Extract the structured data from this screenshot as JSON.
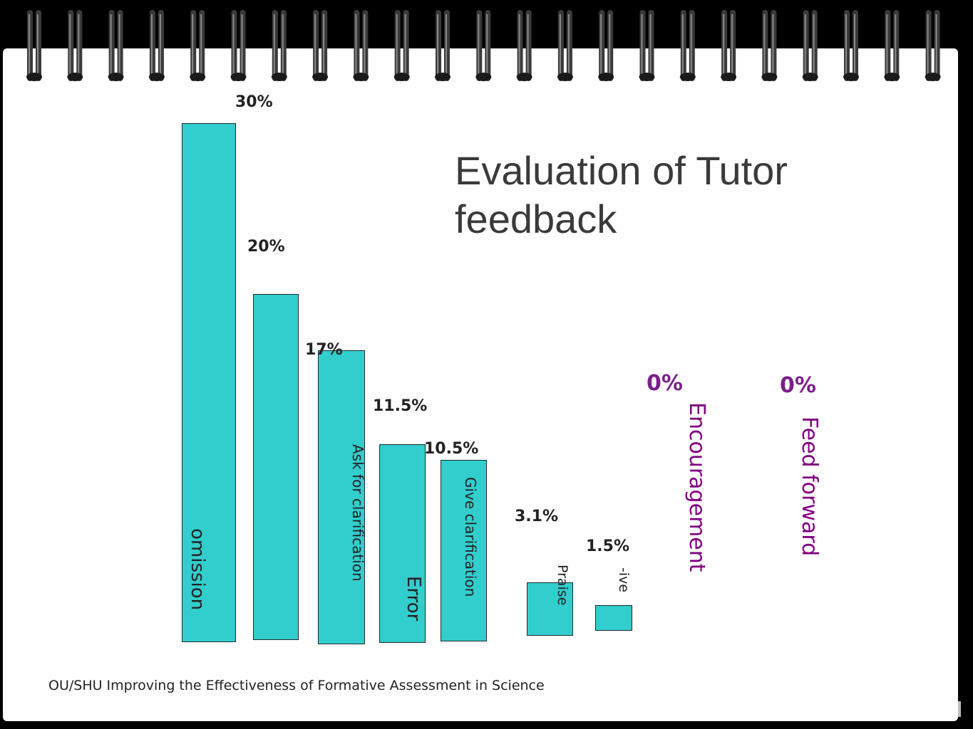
{
  "slide": {
    "title_line1": "Evaluation of Tutor",
    "title_line2": "feedback",
    "footer": "OU/SHU Improving the Effectiveness of Formative Assessment in Science"
  },
  "colors": {
    "bar": "#32cdcd",
    "purple": "#800080",
    "value_purple": "#7b1f8a"
  },
  "chart_data": {
    "type": "bar",
    "title": "Evaluation of Tutor feedback",
    "categories": [
      "omission",
      "",
      "Ask for clarification",
      "Error",
      "Give clarification",
      "Praise",
      "-ive",
      "Encouragement",
      "Feed forward"
    ],
    "values": [
      30,
      20,
      17,
      11.5,
      10.5,
      3.1,
      1.5,
      0,
      0
    ],
    "value_labels": [
      "30%",
      "20%",
      "17%",
      "11.5%",
      "10.5%",
      "3.1%",
      "1.5%",
      "0%",
      "0%"
    ],
    "unit": "%",
    "legend": "none",
    "grid": false
  }
}
